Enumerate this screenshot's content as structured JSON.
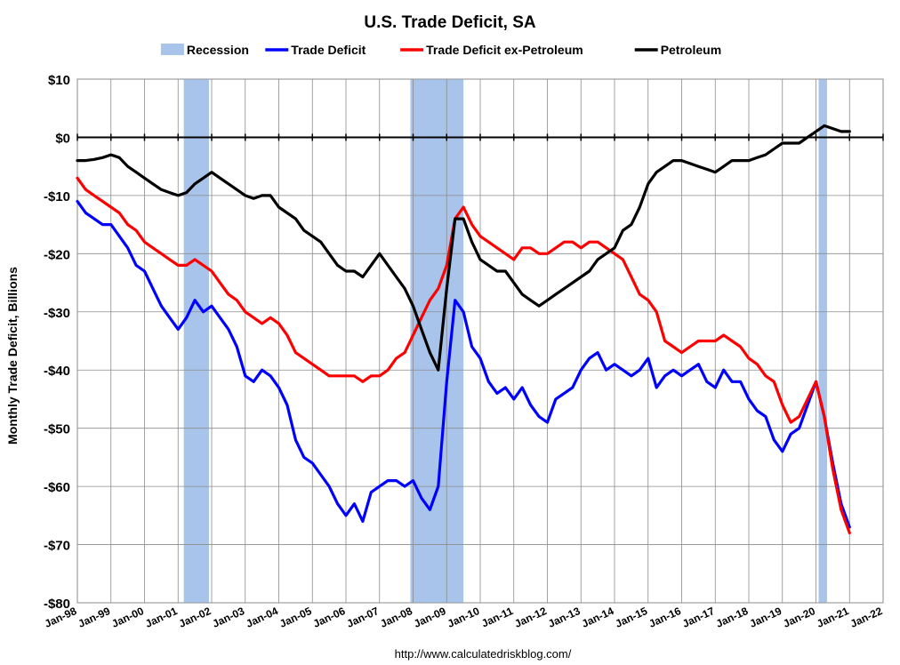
{
  "chart_data": {
    "type": "line",
    "title": "U.S. Trade Deficit, SA",
    "ylabel": "Monthly Trade Deficit, Billions",
    "xlabel": "",
    "source": "http://www.calculatedriskblog.com/",
    "ylim": [
      -80,
      10
    ],
    "xlim": [
      1998.0,
      2022.0
    ],
    "y_ticks": [
      10,
      0,
      -10,
      -20,
      -30,
      -40,
      -50,
      -60,
      -70,
      -80
    ],
    "y_tick_labels": [
      "$10",
      "$0",
      "-$10",
      "-$20",
      "-$30",
      "-$40",
      "-$50",
      "-$60",
      "-$70",
      "-$80"
    ],
    "x_ticks": [
      1998,
      1999,
      2000,
      2001,
      2002,
      2003,
      2004,
      2005,
      2006,
      2007,
      2008,
      2009,
      2010,
      2011,
      2012,
      2013,
      2014,
      2015,
      2016,
      2017,
      2018,
      2019,
      2020,
      2021,
      2022
    ],
    "x_tick_labels": [
      "Jan-98",
      "Jan-99",
      "Jan-00",
      "Jan-01",
      "Jan-02",
      "Jan-03",
      "Jan-04",
      "Jan-05",
      "Jan-06",
      "Jan-07",
      "Jan-08",
      "Jan-09",
      "Jan-10",
      "Jan-11",
      "Jan-12",
      "Jan-13",
      "Jan-14",
      "Jan-15",
      "Jan-16",
      "Jan-17",
      "Jan-18",
      "Jan-19",
      "Jan-20",
      "Jan-21",
      "Jan-22"
    ],
    "grid": true,
    "legend": [
      {
        "name": "Recession",
        "color": "#a9c4eb",
        "kind": "area"
      },
      {
        "name": "Trade Deficit",
        "color": "#0000ff",
        "kind": "line"
      },
      {
        "name": "Trade Deficit ex-Petroleum",
        "color": "#ff0000",
        "kind": "line"
      },
      {
        "name": "Petroleum",
        "color": "#000000",
        "kind": "line"
      }
    ],
    "recessions": [
      [
        2001.17,
        2001.92
      ],
      [
        2007.92,
        2009.5
      ],
      [
        2020.08,
        2020.33
      ]
    ],
    "series": [
      {
        "name": "Trade Deficit",
        "color": "#0000ff",
        "x": [
          1998.0,
          1998.25,
          1998.5,
          1998.75,
          1999.0,
          1999.25,
          1999.5,
          1999.75,
          2000.0,
          2000.25,
          2000.5,
          2000.75,
          2001.0,
          2001.25,
          2001.5,
          2001.75,
          2002.0,
          2002.25,
          2002.5,
          2002.75,
          2003.0,
          2003.25,
          2003.5,
          2003.75,
          2004.0,
          2004.25,
          2004.5,
          2004.75,
          2005.0,
          2005.25,
          2005.5,
          2005.75,
          2006.0,
          2006.25,
          2006.5,
          2006.75,
          2007.0,
          2007.25,
          2007.5,
          2007.75,
          2008.0,
          2008.25,
          2008.5,
          2008.75,
          2009.0,
          2009.25,
          2009.5,
          2009.75,
          2010.0,
          2010.25,
          2010.5,
          2010.75,
          2011.0,
          2011.25,
          2011.5,
          2011.75,
          2012.0,
          2012.25,
          2012.5,
          2012.75,
          2013.0,
          2013.25,
          2013.5,
          2013.75,
          2014.0,
          2014.25,
          2014.5,
          2014.75,
          2015.0,
          2015.25,
          2015.5,
          2015.75,
          2016.0,
          2016.25,
          2016.5,
          2016.75,
          2017.0,
          2017.25,
          2017.5,
          2017.75,
          2018.0,
          2018.25,
          2018.5,
          2018.75,
          2019.0,
          2019.25,
          2019.5,
          2019.75,
          2020.0,
          2020.25,
          2020.5,
          2020.75,
          2021.0
        ],
        "y": [
          -11,
          -13,
          -14,
          -15,
          -15,
          -17,
          -19,
          -22,
          -23,
          -26,
          -29,
          -31,
          -33,
          -31,
          -28,
          -30,
          -29,
          -31,
          -33,
          -36,
          -41,
          -42,
          -40,
          -41,
          -43,
          -46,
          -52,
          -55,
          -56,
          -58,
          -60,
          -63,
          -65,
          -63,
          -66,
          -61,
          -60,
          -59,
          -59,
          -60,
          -59,
          -62,
          -64,
          -60,
          -42,
          -28,
          -30,
          -36,
          -38,
          -42,
          -44,
          -43,
          -45,
          -43,
          -46,
          -48,
          -49,
          -45,
          -44,
          -43,
          -40,
          -38,
          -37,
          -40,
          -39,
          -40,
          -41,
          -40,
          -38,
          -43,
          -41,
          -40,
          -41,
          -40,
          -39,
          -42,
          -43,
          -40,
          -42,
          -42,
          -45,
          -47,
          -48,
          -52,
          -54,
          -51,
          -50,
          -46,
          -42,
          -48,
          -56,
          -63,
          -67
        ]
      },
      {
        "name": "Trade Deficit ex-Petroleum",
        "color": "#ff0000",
        "x": [
          1998.0,
          1998.25,
          1998.5,
          1998.75,
          1999.0,
          1999.25,
          1999.5,
          1999.75,
          2000.0,
          2000.25,
          2000.5,
          2000.75,
          2001.0,
          2001.25,
          2001.5,
          2001.75,
          2002.0,
          2002.25,
          2002.5,
          2002.75,
          2003.0,
          2003.25,
          2003.5,
          2003.75,
          2004.0,
          2004.25,
          2004.5,
          2004.75,
          2005.0,
          2005.25,
          2005.5,
          2005.75,
          2006.0,
          2006.25,
          2006.5,
          2006.75,
          2007.0,
          2007.25,
          2007.5,
          2007.75,
          2008.0,
          2008.25,
          2008.5,
          2008.75,
          2009.0,
          2009.25,
          2009.5,
          2009.75,
          2010.0,
          2010.25,
          2010.5,
          2010.75,
          2011.0,
          2011.25,
          2011.5,
          2011.75,
          2012.0,
          2012.25,
          2012.5,
          2012.75,
          2013.0,
          2013.25,
          2013.5,
          2013.75,
          2014.0,
          2014.25,
          2014.5,
          2014.75,
          2015.0,
          2015.25,
          2015.5,
          2015.75,
          2016.0,
          2016.25,
          2016.5,
          2016.75,
          2017.0,
          2017.25,
          2017.5,
          2017.75,
          2018.0,
          2018.25,
          2018.5,
          2018.75,
          2019.0,
          2019.25,
          2019.5,
          2019.75,
          2020.0,
          2020.25,
          2020.5,
          2020.75,
          2021.0
        ],
        "y": [
          -7,
          -9,
          -10,
          -11,
          -12,
          -13,
          -15,
          -16,
          -18,
          -19,
          -20,
          -21,
          -22,
          -22,
          -21,
          -22,
          -23,
          -25,
          -27,
          -28,
          -30,
          -31,
          -32,
          -31,
          -32,
          -34,
          -37,
          -38,
          -39,
          -40,
          -41,
          -41,
          -41,
          -41,
          -42,
          -41,
          -41,
          -40,
          -38,
          -37,
          -34,
          -31,
          -28,
          -26,
          -22,
          -14,
          -12,
          -15,
          -17,
          -18,
          -19,
          -20,
          -21,
          -19,
          -19,
          -20,
          -20,
          -19,
          -18,
          -18,
          -19,
          -18,
          -18,
          -19,
          -20,
          -21,
          -24,
          -27,
          -28,
          -30,
          -35,
          -36,
          -37,
          -36,
          -35,
          -35,
          -35,
          -34,
          -35,
          -36,
          -38,
          -39,
          -41,
          -42,
          -46,
          -49,
          -48,
          -45,
          -42,
          -48,
          -57,
          -64,
          -68
        ]
      },
      {
        "name": "Petroleum",
        "color": "#000000",
        "x": [
          1998.0,
          1998.25,
          1998.5,
          1998.75,
          1999.0,
          1999.25,
          1999.5,
          1999.75,
          2000.0,
          2000.25,
          2000.5,
          2000.75,
          2001.0,
          2001.25,
          2001.5,
          2001.75,
          2002.0,
          2002.25,
          2002.5,
          2002.75,
          2003.0,
          2003.25,
          2003.5,
          2003.75,
          2004.0,
          2004.25,
          2004.5,
          2004.75,
          2005.0,
          2005.25,
          2005.5,
          2005.75,
          2006.0,
          2006.25,
          2006.5,
          2006.75,
          2007.0,
          2007.25,
          2007.5,
          2007.75,
          2008.0,
          2008.25,
          2008.5,
          2008.75,
          2009.0,
          2009.25,
          2009.5,
          2009.75,
          2010.0,
          2010.25,
          2010.5,
          2010.75,
          2011.0,
          2011.25,
          2011.5,
          2011.75,
          2012.0,
          2012.25,
          2012.5,
          2012.75,
          2013.0,
          2013.25,
          2013.5,
          2013.75,
          2014.0,
          2014.25,
          2014.5,
          2014.75,
          2015.0,
          2015.25,
          2015.5,
          2015.75,
          2016.0,
          2016.25,
          2016.5,
          2016.75,
          2017.0,
          2017.25,
          2017.5,
          2017.75,
          2018.0,
          2018.25,
          2018.5,
          2018.75,
          2019.0,
          2019.25,
          2019.5,
          2019.75,
          2020.0,
          2020.25,
          2020.5,
          2020.75,
          2021.0
        ],
        "y": [
          -4,
          -4,
          -3.8,
          -3.5,
          -3,
          -3.5,
          -5,
          -6,
          -7,
          -8,
          -9,
          -9.5,
          -10,
          -9.5,
          -8,
          -7,
          -6,
          -7,
          -8,
          -9,
          -10,
          -10.5,
          -10,
          -10,
          -12,
          -13,
          -14,
          -16,
          -17,
          -18,
          -20,
          -22,
          -23,
          -23,
          -24,
          -22,
          -20,
          -22,
          -24,
          -26,
          -29,
          -33,
          -37,
          -40,
          -26,
          -14,
          -14,
          -18,
          -21,
          -22,
          -23,
          -23,
          -25,
          -27,
          -28,
          -29,
          -28,
          -27,
          -26,
          -25,
          -24,
          -23,
          -21,
          -20,
          -19,
          -16,
          -15,
          -12,
          -8,
          -6,
          -5,
          -4,
          -4,
          -4.5,
          -5,
          -5.5,
          -6,
          -5,
          -4,
          -4,
          -4,
          -3.5,
          -3,
          -2,
          -1,
          -1,
          -1,
          0,
          1,
          2,
          1.5,
          1,
          1
        ]
      }
    ]
  }
}
